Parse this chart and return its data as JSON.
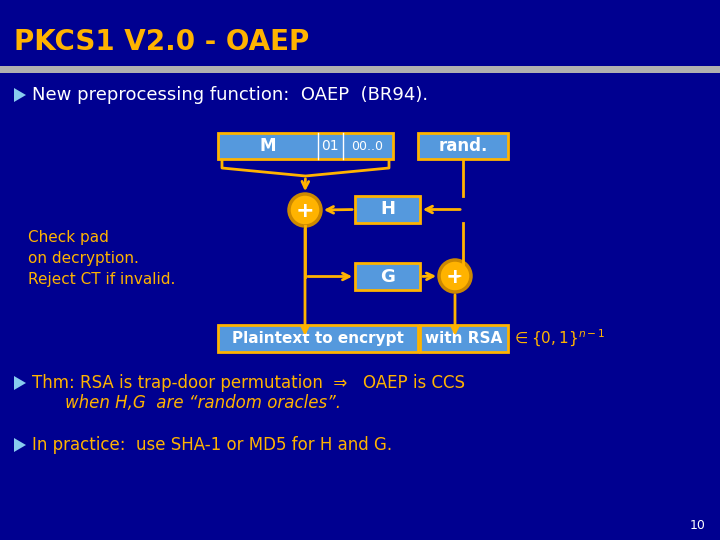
{
  "bg_color": "#000090",
  "title_text": "PKCS1 V2.0 - OAEP",
  "title_color": "#FFB300",
  "title_fontsize": 20,
  "separator_color": "#AAAAAA",
  "bullet_color": "#88CCEE",
  "box_fill": "#5599DD",
  "box_text_color": "#FFFFFF",
  "box_border_color": "#FFB300",
  "circle_fill": "#FFB300",
  "arrow_color": "#FFB300",
  "yellow_text": "#FFB300",
  "white_text": "#FFFFFF",
  "slide_number": "10",
  "bullet1": "New preprocessing function:  OAEP  (BR94).",
  "bullet2_line1": "Thm: RSA is trap-door permutation  ⇒   OAEP is CCS",
  "bullet2_line2": "when H,G  are “random oracles”.",
  "bullet3": "In practice:  use SHA-1 or MD5 for H and G.",
  "check_pad": "Check pad\non decryption.\nReject CT if invalid."
}
